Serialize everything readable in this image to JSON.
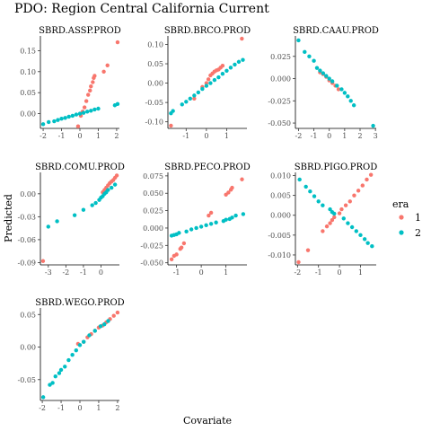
{
  "title": "PDO: Region Central California Current",
  "xlabel": "Covariate",
  "ylabel": "Predicted",
  "legend": {
    "title": "era",
    "position": "right",
    "items": [
      {
        "label": "1",
        "color": "#F8766D"
      },
      {
        "label": "2",
        "color": "#00BFC4"
      }
    ]
  },
  "chart_data": [
    {
      "type": "scatter",
      "title": "SBRD.ASSP.PROD",
      "xlim": [
        -2.15,
        2.15
      ],
      "ylim": [
        -0.035,
        0.185
      ],
      "xticks": [
        -2,
        -1,
        0,
        1,
        2
      ],
      "yticks": [
        0.0,
        0.05,
        0.1,
        0.15
      ],
      "xtick_labels": [
        "-2",
        "-1",
        "0",
        "1",
        "2"
      ],
      "ytick_labels": [
        "0.00",
        "0.05",
        "0.10",
        "0.15"
      ],
      "series": [
        {
          "name": "1",
          "color": "#F8766D",
          "points": [
            [
              -0.1,
              -0.03
            ],
            [
              0.05,
              -0.005
            ],
            [
              0.15,
              0.005
            ],
            [
              0.25,
              0.015
            ],
            [
              0.35,
              0.03
            ],
            [
              0.45,
              0.045
            ],
            [
              0.55,
              0.055
            ],
            [
              0.6,
              0.065
            ],
            [
              0.7,
              0.075
            ],
            [
              0.75,
              0.085
            ],
            [
              0.8,
              0.09
            ],
            [
              1.3,
              0.1
            ],
            [
              1.5,
              0.115
            ],
            [
              2.05,
              0.17
            ]
          ]
        },
        {
          "name": "2",
          "color": "#00BFC4",
          "points": [
            [
              -2.0,
              -0.025
            ],
            [
              -1.7,
              -0.02
            ],
            [
              -1.4,
              -0.018
            ],
            [
              -1.2,
              -0.015
            ],
            [
              -1.0,
              -0.012
            ],
            [
              -0.8,
              -0.01
            ],
            [
              -0.6,
              -0.007
            ],
            [
              -0.4,
              -0.005
            ],
            [
              -0.2,
              -0.002
            ],
            [
              0.0,
              0.0
            ],
            [
              0.2,
              0.002
            ],
            [
              0.4,
              0.005
            ],
            [
              0.6,
              0.007
            ],
            [
              0.8,
              0.01
            ],
            [
              1.0,
              0.012
            ],
            [
              1.9,
              0.02
            ],
            [
              2.05,
              0.023
            ]
          ]
        }
      ]
    },
    {
      "type": "scatter",
      "title": "SBRD.BRCO.PROD",
      "xlim": [
        -1.9,
        2.0
      ],
      "ylim": [
        -0.117,
        0.122
      ],
      "xticks": [
        -1,
        0,
        1
      ],
      "yticks": [
        -0.1,
        -0.05,
        0.0,
        0.05,
        0.1
      ],
      "xtick_labels": [
        "-1",
        "0",
        "1"
      ],
      "ytick_labels": [
        "-0.10",
        "-0.05",
        "0.00",
        "0.05",
        "0.10"
      ],
      "series": [
        {
          "name": "1",
          "color": "#F8766D",
          "points": [
            [
              -1.75,
              -0.11
            ],
            [
              -0.6,
              -0.04
            ],
            [
              -0.2,
              -0.01
            ],
            [
              0.0,
              0.0
            ],
            [
              0.1,
              0.01
            ],
            [
              0.2,
              0.02
            ],
            [
              0.3,
              0.025
            ],
            [
              0.4,
              0.03
            ],
            [
              0.5,
              0.033
            ],
            [
              0.6,
              0.035
            ],
            [
              0.7,
              0.04
            ],
            [
              0.8,
              0.045
            ],
            [
              1.75,
              0.115
            ]
          ]
        },
        {
          "name": "2",
          "color": "#00BFC4",
          "points": [
            [
              -1.75,
              -0.078
            ],
            [
              -1.65,
              -0.072
            ],
            [
              -1.2,
              -0.055
            ],
            [
              -1.0,
              -0.048
            ],
            [
              -0.8,
              -0.04
            ],
            [
              -0.6,
              -0.032
            ],
            [
              -0.4,
              -0.024
            ],
            [
              -0.2,
              -0.015
            ],
            [
              0.0,
              -0.007
            ],
            [
              0.2,
              0.0
            ],
            [
              0.4,
              0.008
            ],
            [
              0.6,
              0.015
            ],
            [
              0.8,
              0.024
            ],
            [
              1.0,
              0.032
            ],
            [
              1.2,
              0.04
            ],
            [
              1.4,
              0.048
            ],
            [
              1.6,
              0.055
            ],
            [
              1.8,
              0.06
            ]
          ]
        }
      ]
    },
    {
      "type": "scatter",
      "title": "SBRD.CAAU.PROD",
      "xlim": [
        -2.2,
        3.05
      ],
      "ylim": [
        -0.056,
        0.048
      ],
      "xticks": [
        -2,
        -1,
        0,
        1,
        2,
        3
      ],
      "yticks": [
        -0.05,
        -0.025,
        0.0,
        0.025
      ],
      "xtick_labels": [
        "-2",
        "-1",
        "0",
        "1",
        "2",
        "3"
      ],
      "ytick_labels": [
        "-0.050",
        "-0.025",
        "0.000",
        "0.025"
      ],
      "series": [
        {
          "name": "1",
          "color": "#F8766D",
          "points": [
            [
              -0.6,
              0.007
            ],
            [
              -0.4,
              0.005
            ],
            [
              -0.2,
              0.002
            ],
            [
              0.0,
              -0.002
            ],
            [
              0.2,
              -0.005
            ],
            [
              0.4,
              -0.008
            ],
            [
              0.6,
              -0.012
            ]
          ]
        },
        {
          "name": "2",
          "color": "#00BFC4",
          "points": [
            [
              -2.0,
              0.043
            ],
            [
              -1.6,
              0.03
            ],
            [
              -1.3,
              0.025
            ],
            [
              -1.0,
              0.02
            ],
            [
              -0.8,
              0.012
            ],
            [
              -0.6,
              0.009
            ],
            [
              -0.4,
              0.006
            ],
            [
              -0.2,
              0.003
            ],
            [
              0.0,
              0.0
            ],
            [
              0.2,
              -0.003
            ],
            [
              0.5,
              -0.008
            ],
            [
              0.8,
              -0.012
            ],
            [
              1.0,
              -0.016
            ],
            [
              1.2,
              -0.02
            ],
            [
              1.4,
              -0.025
            ],
            [
              1.6,
              -0.03
            ],
            [
              2.85,
              -0.053
            ]
          ]
        }
      ]
    },
    {
      "type": "scatter",
      "title": "SBRD.COMU.PROD",
      "xlim": [
        -3.45,
        1.05
      ],
      "ylim": [
        -0.093,
        0.028
      ],
      "xticks": [
        -3,
        -2,
        -1,
        0
      ],
      "yticks": [
        -0.09,
        -0.06,
        -0.03,
        0.0
      ],
      "xtick_labels": [
        "-3",
        "-2",
        "-1",
        "0"
      ],
      "ytick_labels": [
        "-0.09",
        "-0.06",
        "-0.03",
        "0.00"
      ],
      "series": [
        {
          "name": "1",
          "color": "#F8766D",
          "points": [
            [
              -3.3,
              -0.088
            ],
            [
              0.1,
              0.002
            ],
            [
              0.2,
              0.005
            ],
            [
              0.3,
              0.008
            ],
            [
              0.4,
              0.011
            ],
            [
              0.5,
              0.014
            ],
            [
              0.6,
              0.016
            ],
            [
              0.7,
              0.018
            ],
            [
              0.8,
              0.021
            ],
            [
              0.9,
              0.024
            ]
          ]
        },
        {
          "name": "2",
          "color": "#00BFC4",
          "points": [
            [
              -3.0,
              -0.043
            ],
            [
              -2.5,
              -0.036
            ],
            [
              -1.5,
              -0.028
            ],
            [
              -1.0,
              -0.021
            ],
            [
              -0.5,
              -0.015
            ],
            [
              -0.3,
              -0.012
            ],
            [
              -0.1,
              -0.008
            ],
            [
              0.0,
              -0.005
            ],
            [
              0.1,
              -0.003
            ],
            [
              0.2,
              0.0
            ],
            [
              0.3,
              0.002
            ],
            [
              0.4,
              0.005
            ],
            [
              0.6,
              0.008
            ],
            [
              0.8,
              0.012
            ]
          ]
        }
      ]
    },
    {
      "type": "scatter",
      "title": "SBRD.PECO.PROD",
      "xlim": [
        -1.35,
        1.85
      ],
      "ylim": [
        -0.053,
        0.08
      ],
      "xticks": [
        -1,
        0,
        1
      ],
      "yticks": [
        -0.05,
        -0.025,
        0.0,
        0.025,
        0.05,
        0.075
      ],
      "xtick_labels": [
        "-1",
        "0",
        "1"
      ],
      "ytick_labels": [
        "-0.050",
        "-0.025",
        "0.000",
        "0.025",
        "0.050",
        "0.075"
      ],
      "series": [
        {
          "name": "1",
          "color": "#F8766D",
          "points": [
            [
              -1.2,
              -0.045
            ],
            [
              -1.1,
              -0.04
            ],
            [
              -1.0,
              -0.038
            ],
            [
              -0.85,
              -0.03
            ],
            [
              -0.8,
              -0.028
            ],
            [
              -0.7,
              -0.022
            ],
            [
              0.3,
              0.018
            ],
            [
              0.4,
              0.022
            ],
            [
              1.0,
              0.048
            ],
            [
              1.1,
              0.051
            ],
            [
              1.2,
              0.055
            ],
            [
              1.25,
              0.058
            ],
            [
              1.65,
              0.07
            ]
          ]
        },
        {
          "name": "2",
          "color": "#00BFC4",
          "points": [
            [
              -1.2,
              -0.011
            ],
            [
              -1.1,
              -0.01
            ],
            [
              -1.0,
              -0.009
            ],
            [
              -0.9,
              -0.007
            ],
            [
              -0.6,
              -0.005
            ],
            [
              -0.4,
              -0.002
            ],
            [
              -0.2,
              0.0
            ],
            [
              0.0,
              0.002
            ],
            [
              0.2,
              0.004
            ],
            [
              0.4,
              0.006
            ],
            [
              0.6,
              0.008
            ],
            [
              0.9,
              0.01
            ],
            [
              1.0,
              0.012
            ],
            [
              1.15,
              0.013
            ],
            [
              1.25,
              0.015
            ],
            [
              1.4,
              0.018
            ],
            [
              1.7,
              0.02
            ]
          ]
        }
      ]
    },
    {
      "type": "scatter",
      "title": "SBRD.PIGO.PROD",
      "xlim": [
        -2.1,
        1.75
      ],
      "ylim": [
        -0.0125,
        0.0108
      ],
      "xticks": [
        -2,
        -1,
        0,
        1
      ],
      "yticks": [
        -0.01,
        -0.005,
        0.0,
        0.005,
        0.01
      ],
      "xtick_labels": [
        "-2",
        "-1",
        "0",
        "1"
      ],
      "ytick_labels": [
        "-0.010",
        "-0.005",
        "0.000",
        "0.005",
        "0.010"
      ],
      "series": [
        {
          "name": "1",
          "color": "#F8766D",
          "points": [
            [
              -1.95,
              -0.0118
            ],
            [
              -1.5,
              -0.0088
            ],
            [
              -0.8,
              -0.004
            ],
            [
              -0.6,
              -0.0028
            ],
            [
              -0.45,
              -0.002
            ],
            [
              -0.35,
              -0.0012
            ],
            [
              -0.25,
              -0.0005
            ],
            [
              0.0,
              0.0005
            ],
            [
              0.1,
              0.0015
            ],
            [
              0.3,
              0.0025
            ],
            [
              0.5,
              0.0035
            ],
            [
              0.7,
              0.005
            ],
            [
              0.9,
              0.0062
            ],
            [
              1.1,
              0.0075
            ],
            [
              1.3,
              0.009
            ],
            [
              1.5,
              0.0102
            ]
          ]
        },
        {
          "name": "2",
          "color": "#00BFC4",
          "points": [
            [
              -1.9,
              0.009
            ],
            [
              -1.6,
              0.0072
            ],
            [
              -1.4,
              0.006
            ],
            [
              -1.2,
              0.0048
            ],
            [
              -1.0,
              0.0035
            ],
            [
              -0.8,
              0.0025
            ],
            [
              -0.45,
              0.0015
            ],
            [
              -0.35,
              0.0008
            ],
            [
              -0.25,
              0.0004
            ],
            [
              0.2,
              -0.0008
            ],
            [
              0.4,
              -0.002
            ],
            [
              0.6,
              -0.003
            ],
            [
              0.8,
              -0.004
            ],
            [
              1.0,
              -0.005
            ],
            [
              1.2,
              -0.006
            ],
            [
              1.35,
              -0.007
            ],
            [
              1.55,
              -0.0078
            ]
          ]
        }
      ]
    },
    {
      "type": "scatter",
      "title": "SBRD.WEGO.PROD",
      "xlim": [
        -2.1,
        2.1
      ],
      "ylim": [
        -0.082,
        0.06
      ],
      "xticks": [
        -2,
        -1,
        0,
        1,
        2
      ],
      "yticks": [
        -0.05,
        0.0,
        0.05
      ],
      "xtick_labels": [
        "-2",
        "-1",
        "0",
        "1",
        "2"
      ],
      "ytick_labels": [
        "-0.05",
        "0.00",
        "0.05"
      ],
      "series": [
        {
          "name": "1",
          "color": "#F8766D",
          "points": [
            [
              -0.1,
              0.005
            ],
            [
              0.2,
              0.008
            ],
            [
              0.4,
              0.015
            ],
            [
              0.6,
              0.02
            ],
            [
              0.8,
              0.025
            ],
            [
              1.0,
              0.03
            ],
            [
              1.2,
              0.033
            ],
            [
              1.4,
              0.038
            ],
            [
              1.6,
              0.043
            ],
            [
              1.8,
              0.048
            ],
            [
              2.0,
              0.053
            ]
          ]
        },
        {
          "name": "2",
          "color": "#00BFC4",
          "points": [
            [
              -1.95,
              -0.077
            ],
            [
              -1.6,
              -0.058
            ],
            [
              -1.45,
              -0.055
            ],
            [
              -1.3,
              -0.045
            ],
            [
              -1.1,
              -0.04
            ],
            [
              -1.0,
              -0.035
            ],
            [
              -0.8,
              -0.03
            ],
            [
              -0.6,
              -0.02
            ],
            [
              -0.4,
              -0.012
            ],
            [
              -0.2,
              -0.005
            ],
            [
              0.0,
              0.003
            ],
            [
              0.2,
              0.008
            ],
            [
              0.5,
              0.018
            ],
            [
              0.8,
              0.025
            ],
            [
              1.1,
              0.032
            ],
            [
              1.3,
              0.035
            ],
            [
              1.5,
              0.04
            ]
          ]
        }
      ]
    }
  ]
}
